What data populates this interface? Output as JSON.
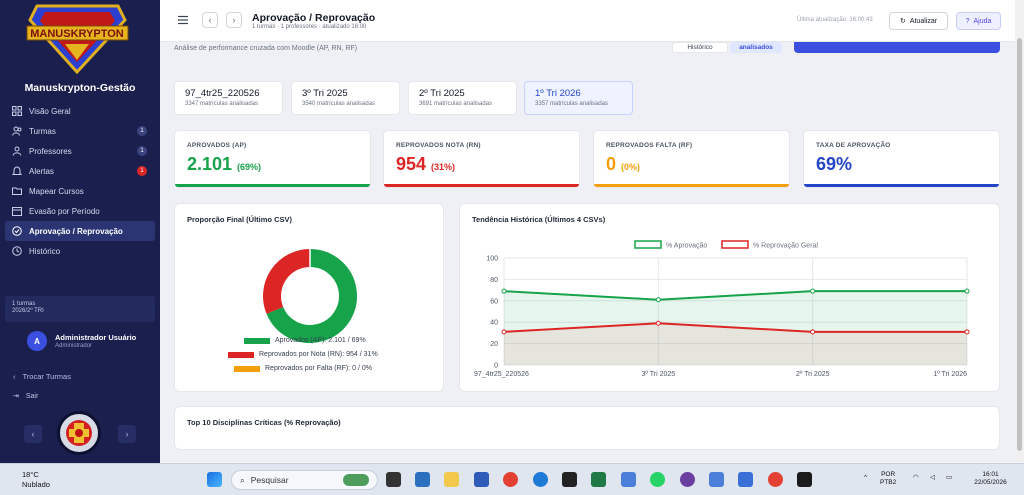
{
  "sidebar": {
    "brand": "Manuskrypton-Gestão",
    "logo_text": "MANUSKRYPTON",
    "items": [
      {
        "label": "Visão Geral",
        "icon": "grid-icon",
        "badge": ""
      },
      {
        "label": "Turmas",
        "icon": "users-icon",
        "badge": "1"
      },
      {
        "label": "Professores",
        "icon": "user-icon",
        "badge": "1"
      },
      {
        "label": "Alertas",
        "icon": "bell-icon",
        "badge": "1"
      },
      {
        "label": "Mapear Cursos",
        "icon": "folder-icon",
        "badge": ""
      },
      {
        "label": "Evasão por Período",
        "icon": "calendar-icon",
        "badge": ""
      },
      {
        "label": "Aprovação / Reprovação",
        "icon": "check-circle-icon",
        "badge": ""
      },
      {
        "label": "Histórico",
        "icon": "clock-icon",
        "badge": ""
      }
    ],
    "info_line1": "1 turmas",
    "info_line2": "2026/2º TRI",
    "user_initial": "A",
    "user_name": "Administrador Usuário",
    "user_role": "Administrador",
    "switch_label": "Trocar Turmas",
    "logout_label": "Sair",
    "accent": "#1a1f4e"
  },
  "header": {
    "title": "Aprovação / Reprovação",
    "subtitle": "1 turmas · 1 professores · atualizado 16:00",
    "updated": "Última atualização: 16:00:43",
    "refresh_label": "Atualizar",
    "help_label": "Ajuda"
  },
  "subheader": {
    "description": "Análise de performance cruzada com Moodle (AP, RN, RF)",
    "history_btn": "Histórico",
    "analyzed_pill": "analisados"
  },
  "periods": [
    {
      "title": "97_4tr25_220526",
      "sub": "3347 matrículas analisadas"
    },
    {
      "title": "3º Tri 2025",
      "sub": "3540 matrículas analisadas"
    },
    {
      "title": "2º Tri 2025",
      "sub": "3691 matrículas analisadas"
    },
    {
      "title": "1º Tri 2026",
      "sub": "3357 matrículas analisadas"
    }
  ],
  "kpis": [
    {
      "label": "APROVADOS (AP)",
      "value": "2.101",
      "pct": "(69%)",
      "color": "#16a34a"
    },
    {
      "label": "REPROVADOS NOTA (RN)",
      "value": "954",
      "pct": "(31%)",
      "color": "#dc2626"
    },
    {
      "label": "REPROVADOS FALTA (RF)",
      "value": "0",
      "pct": "(0%)",
      "color": "#f59e0b"
    },
    {
      "label": "TAXA DE APROVAÇÃO",
      "value": "69%",
      "pct": "",
      "color": "#2545c9"
    }
  ],
  "donut_panel": {
    "title": "Proporção Final (Último CSV)",
    "legend": [
      "Aprovados (AP): 2.101 / 69%",
      "Reprovados por Nota (RN): 954 / 31%",
      "Reprovados por Falta (RF): 0 / 0%"
    ]
  },
  "trend_panel": {
    "title": "Tendência Histórica (Últimos 4 CSVs)"
  },
  "critical_panel": {
    "title": "Top 10 Disciplinas Críticas (% Reprovação)"
  },
  "chart_data": [
    {
      "type": "pie",
      "categories": [
        "Aprovados (AP)",
        "Reprovados por Nota (RN)",
        "Reprovados por Falta (RF)"
      ],
      "values": [
        2101,
        954,
        0
      ],
      "colors": [
        "#16a34a",
        "#dc2626",
        "#f59e0b"
      ]
    },
    {
      "type": "line",
      "categories": [
        "97_4tr25_220526",
        "3º Tri 2025",
        "2º Tri 2025",
        "1º Tri 2026"
      ],
      "series": [
        {
          "name": "% Aprovação",
          "values": [
            69,
            61,
            69,
            69
          ],
          "color": "#16a34a"
        },
        {
          "name": "% Reprovação Geral",
          "values": [
            31,
            39,
            31,
            31
          ],
          "color": "#dc2626"
        }
      ],
      "ylim": [
        0,
        100
      ],
      "yticks": [
        "0",
        "20",
        "40",
        "60",
        "80",
        "100"
      ],
      "xticks": [
        "97_4tr25_220526",
        "3º Tri 2025",
        "2º Tri 2025",
        "1º Tri 2026"
      ],
      "grid": true,
      "legend": "top-center"
    }
  ],
  "taskbar": {
    "temp": "18°C",
    "condition": "Nublado",
    "search_placeholder": "Pesquisar",
    "lang1": "POR",
    "lang2": "PTB2",
    "time": "16:01",
    "date": "22/05/2026"
  }
}
